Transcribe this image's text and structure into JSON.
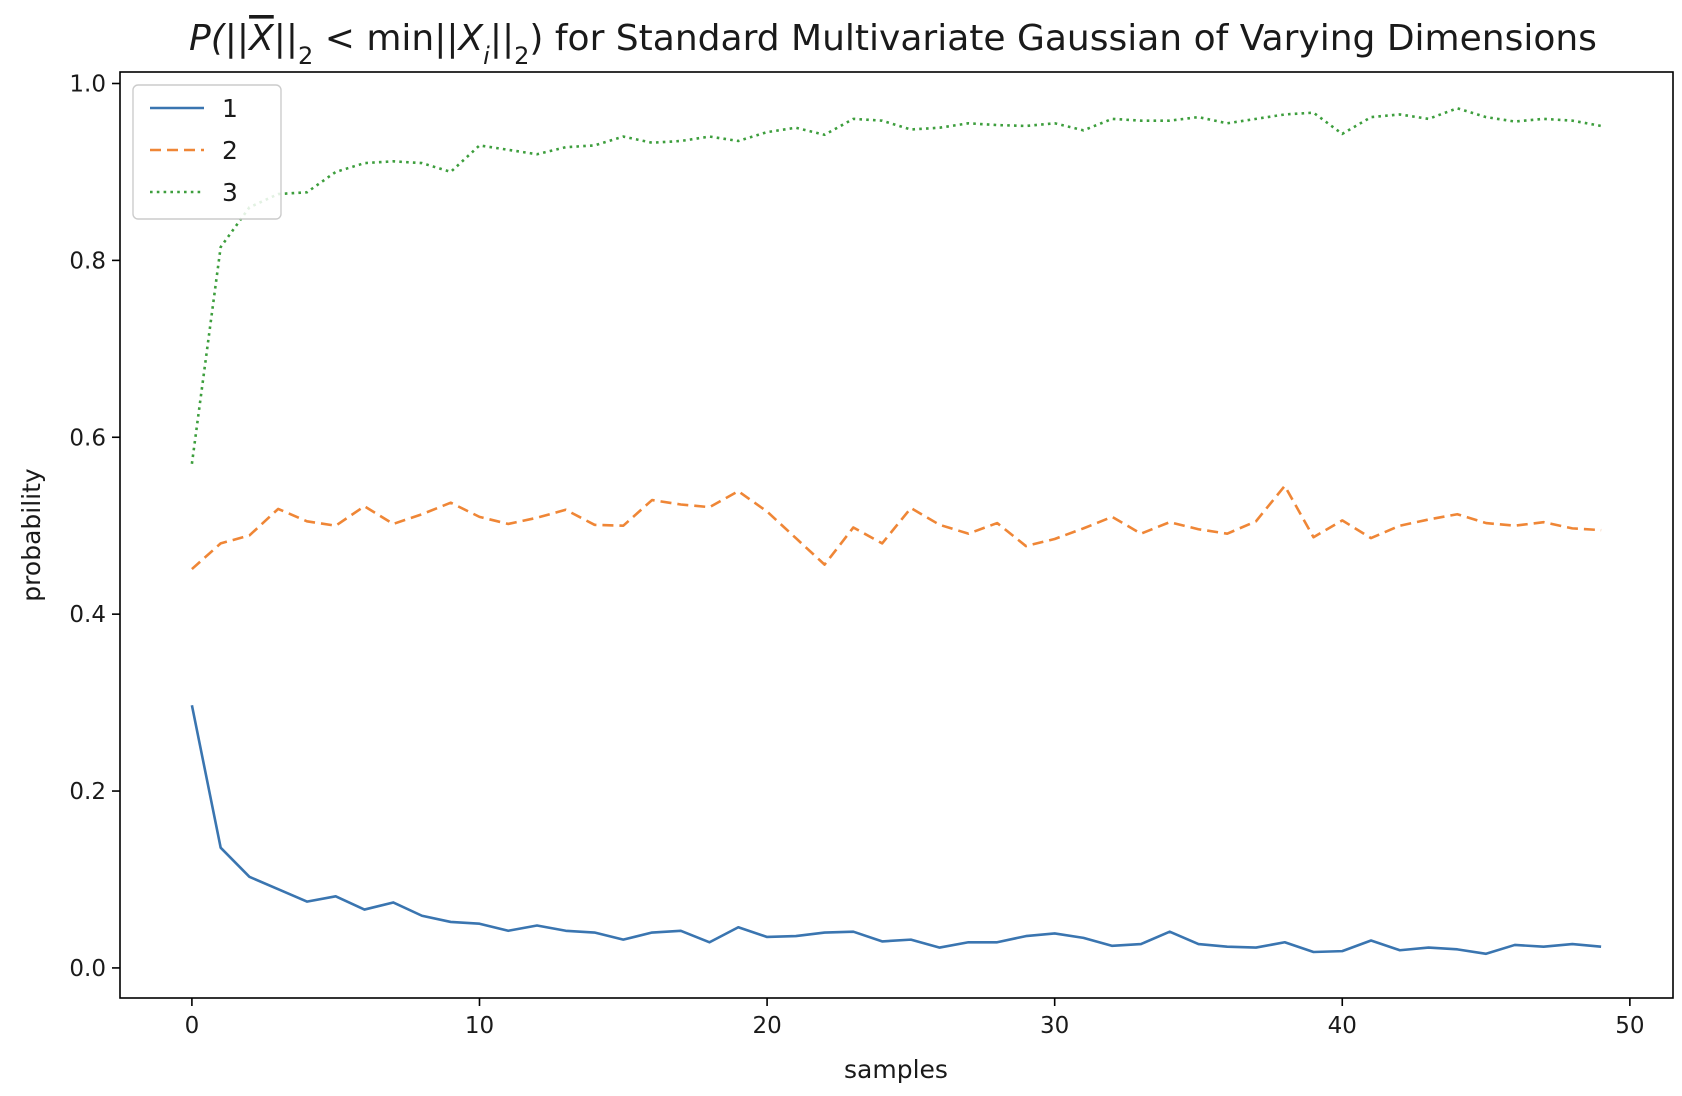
{
  "chart_data": {
    "type": "line",
    "title_parts": {
      "prefix": "P(||",
      "xbar": "X",
      "mid": "||",
      "sub1": "2",
      "lt": " < min||",
      "xi": "X",
      "sub_i": "i",
      "mid2": "||",
      "sub2": "2",
      "suffix": ") for Standard Multivariate Gaussian of Varying Dimensions"
    },
    "xlabel": "samples",
    "ylabel": "probability",
    "xlim": [
      -2.5,
      51.5
    ],
    "ylim": [
      -0.034,
      1.013
    ],
    "xticks": [
      0,
      10,
      20,
      30,
      40,
      50
    ],
    "xtick_labels": [
      "0",
      "10",
      "20",
      "30",
      "40",
      "50"
    ],
    "yticks": [
      0.0,
      0.2,
      0.4,
      0.6,
      0.8,
      1.0
    ],
    "ytick_labels": [
      "0.0",
      "0.2",
      "0.4",
      "0.6",
      "0.8",
      "1.0"
    ],
    "legend_position": "top-left",
    "x": [
      0,
      1,
      2,
      3,
      4,
      5,
      6,
      7,
      8,
      9,
      10,
      11,
      12,
      13,
      14,
      15,
      16,
      17,
      18,
      19,
      20,
      21,
      22,
      23,
      24,
      25,
      26,
      27,
      28,
      29,
      30,
      31,
      32,
      33,
      34,
      35,
      36,
      37,
      38,
      39,
      40,
      41,
      42,
      43,
      44,
      45,
      46,
      47,
      48,
      49
    ],
    "series": [
      {
        "name": "1",
        "color": "#3a75b0",
        "dash": "solid",
        "values": [
          0.297,
          0.136,
          0.103,
          0.089,
          0.075,
          0.081,
          0.066,
          0.074,
          0.059,
          0.052,
          0.05,
          0.042,
          0.048,
          0.042,
          0.04,
          0.032,
          0.04,
          0.042,
          0.029,
          0.046,
          0.035,
          0.036,
          0.04,
          0.041,
          0.03,
          0.032,
          0.023,
          0.029,
          0.029,
          0.036,
          0.039,
          0.034,
          0.025,
          0.027,
          0.041,
          0.027,
          0.024,
          0.023,
          0.029,
          0.018,
          0.019,
          0.031,
          0.02,
          0.023,
          0.021,
          0.016,
          0.026,
          0.024,
          0.027,
          0.024
        ]
      },
      {
        "name": "2",
        "color": "#ef8636",
        "dash": "dashed",
        "values": [
          0.451,
          0.48,
          0.489,
          0.519,
          0.505,
          0.5,
          0.522,
          0.502,
          0.513,
          0.526,
          0.51,
          0.502,
          0.509,
          0.518,
          0.501,
          0.5,
          0.529,
          0.524,
          0.521,
          0.539,
          0.516,
          0.486,
          0.456,
          0.498,
          0.48,
          0.52,
          0.501,
          0.491,
          0.503,
          0.477,
          0.485,
          0.497,
          0.51,
          0.491,
          0.504,
          0.496,
          0.491,
          0.505,
          0.545,
          0.487,
          0.506,
          0.486,
          0.5,
          0.507,
          0.513,
          0.503,
          0.5,
          0.504,
          0.497,
          0.495
        ]
      },
      {
        "name": "3",
        "color": "#3d9e3d",
        "dash": "dotted",
        "values": [
          0.57,
          0.815,
          0.86,
          0.875,
          0.877,
          0.9,
          0.91,
          0.912,
          0.91,
          0.9,
          0.93,
          0.925,
          0.92,
          0.928,
          0.93,
          0.94,
          0.933,
          0.935,
          0.94,
          0.935,
          0.945,
          0.95,
          0.942,
          0.96,
          0.958,
          0.948,
          0.95,
          0.955,
          0.953,
          0.952,
          0.955,
          0.947,
          0.96,
          0.958,
          0.958,
          0.962,
          0.955,
          0.96,
          0.965,
          0.967,
          0.943,
          0.962,
          0.965,
          0.96,
          0.972,
          0.962,
          0.957,
          0.96,
          0.958,
          0.952
        ]
      }
    ]
  }
}
